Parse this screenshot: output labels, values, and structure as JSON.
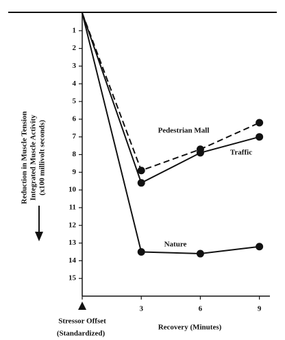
{
  "chart_data": {
    "type": "line",
    "ylabel": [
      "Reduction in Muscle Tension",
      "Integrated Muscle Activity",
      "(x100 millivolt seconds)"
    ],
    "xlabel": "Recovery (Minutes)",
    "x_tick_note": "(Standardized)",
    "x": [
      0,
      3,
      6,
      9
    ],
    "xlim": [
      0,
      9.5
    ],
    "xticks": [
      {
        "value": 0,
        "label": "Stressor Offset"
      },
      3,
      6,
      9
    ],
    "ylim": [
      0,
      16
    ],
    "yticks": [
      1,
      2,
      3,
      4,
      5,
      6,
      7,
      8,
      9,
      10,
      11,
      12,
      13,
      14,
      15
    ],
    "y_inverted": true,
    "series": [
      {
        "name": "Pedestrian Mall",
        "color": "#111111",
        "dashed": true,
        "values": [
          0,
          8.9,
          7.7,
          6.2
        ]
      },
      {
        "name": "Traffic",
        "color": "#111111",
        "dashed": false,
        "values": [
          0,
          9.6,
          7.9,
          7.0
        ]
      },
      {
        "name": "Nature",
        "color": "#111111",
        "dashed": false,
        "values": [
          0,
          13.5,
          13.6,
          13.2
        ]
      }
    ]
  }
}
